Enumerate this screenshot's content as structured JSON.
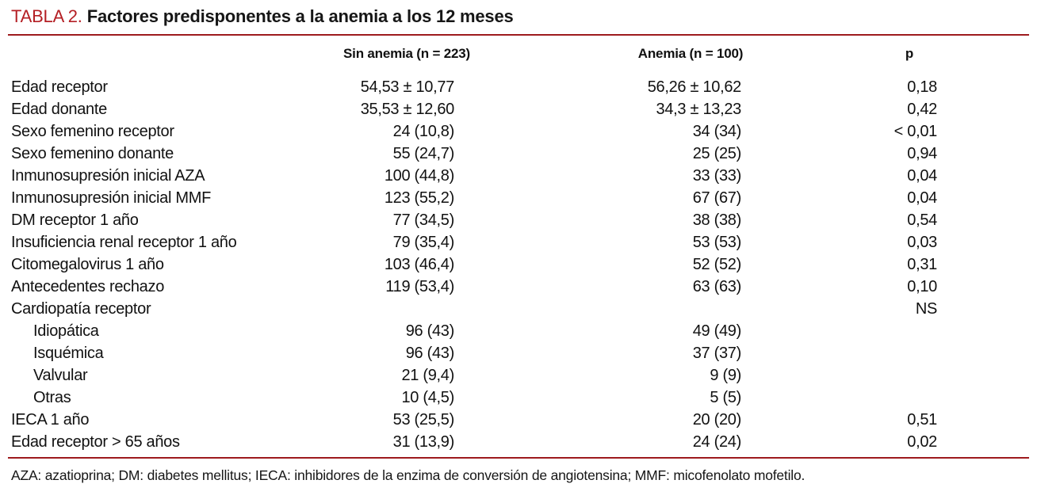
{
  "title": {
    "label": "TABLA 2.",
    "text": "Factores predisponentes a la anemia a los 12 meses"
  },
  "colors": {
    "accent_red": "#b41f24",
    "rule_red": "#9e1b1e"
  },
  "table": {
    "columns": [
      "",
      "Sin anemia (n = 223)",
      "Anemia (n = 100)",
      "p"
    ],
    "rows": [
      {
        "label": "Edad receptor",
        "indent": false,
        "sin_anemia": "54,53 ± 10,77",
        "anemia": "56,26 ± 10,62",
        "p": "0,18"
      },
      {
        "label": "Edad donante",
        "indent": false,
        "sin_anemia": "35,53 ± 12,60",
        "anemia": "34,3 ± 13,23",
        "p": "0,42"
      },
      {
        "label": "Sexo femenino receptor",
        "indent": false,
        "sin_anemia": "24 (10,8)",
        "anemia": "34 (34)",
        "p": "< 0,01"
      },
      {
        "label": "Sexo femenino donante",
        "indent": false,
        "sin_anemia": "55 (24,7)",
        "anemia": "25 (25)",
        "p": "0,94"
      },
      {
        "label": "Inmunosupresión inicial AZA",
        "indent": false,
        "sin_anemia": "100 (44,8)",
        "anemia": "33 (33)",
        "p": "0,04"
      },
      {
        "label": "Inmunosupresión inicial MMF",
        "indent": false,
        "sin_anemia": "123 (55,2)",
        "anemia": "67 (67)",
        "p": "0,04"
      },
      {
        "label": "DM receptor 1 año",
        "indent": false,
        "sin_anemia": "77 (34,5)",
        "anemia": "38 (38)",
        "p": "0,54"
      },
      {
        "label": "Insuficiencia renal receptor 1 año",
        "indent": false,
        "sin_anemia": "79 (35,4)",
        "anemia": "53 (53)",
        "p": "0,03"
      },
      {
        "label": "Citomegalovirus 1 año",
        "indent": false,
        "sin_anemia": "103 (46,4)",
        "anemia": "52 (52)",
        "p": "0,31"
      },
      {
        "label": "Antecedentes rechazo",
        "indent": false,
        "sin_anemia": "119 (53,4)",
        "anemia": "63 (63)",
        "p": "0,10"
      },
      {
        "label": "Cardiopatía receptor",
        "indent": false,
        "sin_anemia": "",
        "anemia": "",
        "p": "NS"
      },
      {
        "label": "Idiopática",
        "indent": true,
        "sin_anemia": "96 (43)",
        "anemia": "49 (49)",
        "p": ""
      },
      {
        "label": "Isquémica",
        "indent": true,
        "sin_anemia": "96 (43)",
        "anemia": "37 (37)",
        "p": ""
      },
      {
        "label": "Valvular",
        "indent": true,
        "sin_anemia": "21 (9,4)",
        "anemia": "9 (9)",
        "p": ""
      },
      {
        "label": "Otras",
        "indent": true,
        "sin_anemia": "10 (4,5)",
        "anemia": "5 (5)",
        "p": ""
      },
      {
        "label": "IECA 1 año",
        "indent": false,
        "sin_anemia": "53 (25,5)",
        "anemia": "20 (20)",
        "p": "0,51"
      },
      {
        "label": "Edad receptor > 65 años",
        "indent": false,
        "sin_anemia": "31 (13,9)",
        "anemia": "24 (24)",
        "p": "0,02"
      }
    ]
  },
  "footnote": "AZA: azatioprina; DM: diabetes mellitus; IECA: inhibidores de la enzima de conversión de angiotensina; MMF: micofenolato mofetilo."
}
